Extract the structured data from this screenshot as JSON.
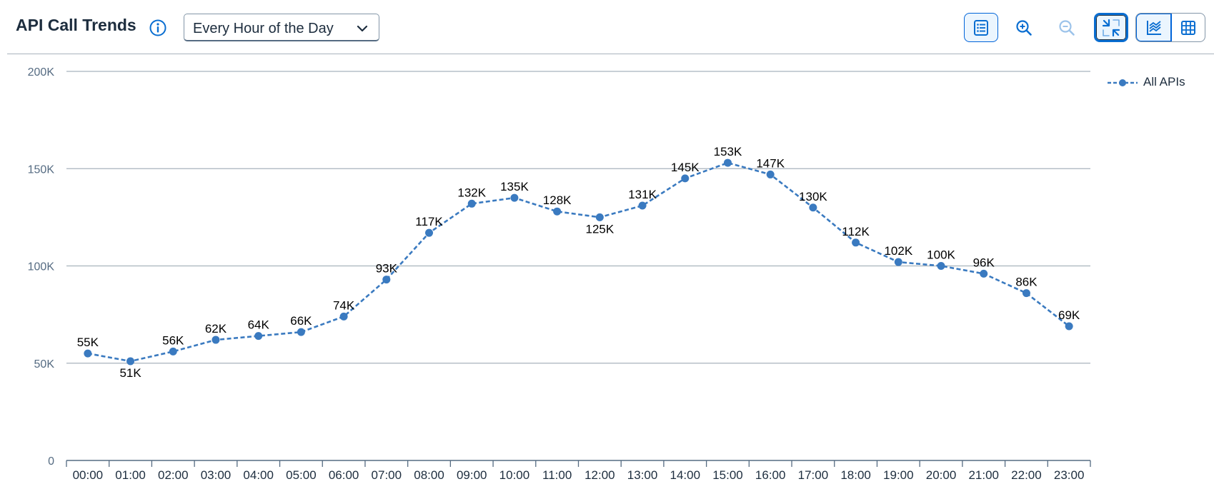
{
  "header": {
    "title": "API Call Trends",
    "info_icon": "info-icon",
    "granularity_select": {
      "value": "Every Hour of the Day",
      "icon": "chevron-down-icon"
    }
  },
  "toolbar": {
    "buttons": [
      {
        "name": "details-list",
        "icon": "list-details-icon"
      },
      {
        "name": "zoom-in",
        "icon": "zoom-in-icon"
      },
      {
        "name": "zoom-out",
        "icon": "zoom-out-icon",
        "disabled": true
      },
      {
        "name": "exit-full-screen",
        "icon": "exit-full-screen-icon"
      }
    ],
    "view_toggle": [
      {
        "name": "chart-view",
        "icon": "line-chart-icon",
        "selected": true
      },
      {
        "name": "table-view",
        "icon": "table-icon",
        "selected": false
      }
    ]
  },
  "colors": {
    "series": "#3a7ac0",
    "grid": "#a8b3bd",
    "axis": "#556b82",
    "accent": "#0a6ed1"
  },
  "chart_data": {
    "type": "line",
    "categories": [
      "00:00",
      "01:00",
      "02:00",
      "03:00",
      "04:00",
      "05:00",
      "06:00",
      "07:00",
      "08:00",
      "09:00",
      "10:00",
      "11:00",
      "12:00",
      "13:00",
      "14:00",
      "15:00",
      "16:00",
      "17:00",
      "18:00",
      "19:00",
      "20:00",
      "21:00",
      "22:00",
      "23:00"
    ],
    "series": [
      {
        "name": "All APIs",
        "values": [
          55000,
          51000,
          56000,
          62000,
          64000,
          66000,
          74000,
          93000,
          117000,
          132000,
          135000,
          128000,
          125000,
          131000,
          145000,
          153000,
          147000,
          130000,
          112000,
          102000,
          100000,
          96000,
          86000,
          69000
        ],
        "labels": [
          "55K",
          "51K",
          "56K",
          "62K",
          "64K",
          "66K",
          "74K",
          "93K",
          "117K",
          "132K",
          "135K",
          "128K",
          "125K",
          "131K",
          "145K",
          "153K",
          "147K",
          "130K",
          "112K",
          "102K",
          "100K",
          "96K",
          "86K",
          "69K"
        ],
        "line_style": "dashed",
        "marker": "circle"
      }
    ],
    "ylim": [
      0,
      200000
    ],
    "yticks": [
      0,
      50000,
      100000,
      150000,
      200000
    ],
    "ytick_labels": [
      "0",
      "50K",
      "100K",
      "150K",
      "200K"
    ],
    "grid": true,
    "legend_position": "top-right"
  }
}
